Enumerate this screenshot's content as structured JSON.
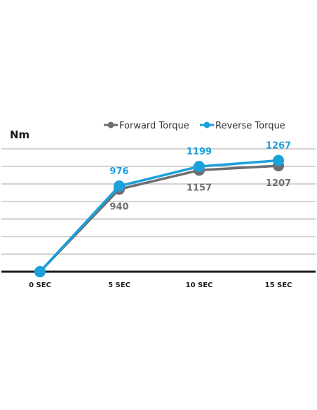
{
  "chart_data": {
    "type": "line",
    "categories": [
      "0 SEC",
      "5 SEC",
      "10 SEC",
      "15 SEC"
    ],
    "ylabel": "Nm",
    "ylim": [
      0,
      1400
    ],
    "grid": true,
    "legend_position": "top-right",
    "series": [
      {
        "name": "Forward Torque",
        "color": "#6d6e70",
        "values": [
          0,
          940,
          1157,
          1207
        ],
        "labels": [
          "",
          "940",
          "1157",
          "1207"
        ]
      },
      {
        "name": "Reverse Torque",
        "color": "#1ba1dc",
        "values": [
          0,
          976,
          1199,
          1267
        ],
        "labels": [
          "",
          "976",
          "1199",
          "1267"
        ]
      }
    ]
  }
}
